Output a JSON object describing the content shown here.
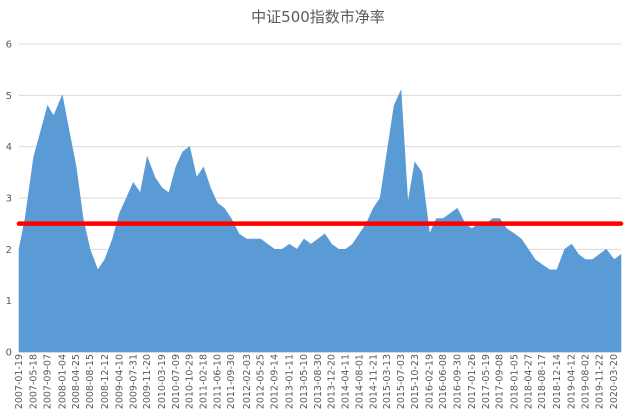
{
  "chart_data": {
    "type": "area",
    "title": "中证500指数市净率",
    "xlabel": "",
    "ylabel": "",
    "ylim": [
      0,
      6
    ],
    "yticks": [
      "0",
      "1",
      "2",
      "3",
      "4",
      "5",
      "6"
    ],
    "grid": true,
    "legend": "none",
    "colors": {
      "area": "#5b9bd5",
      "reference_line": "#ff0000",
      "gridline": "#d9d9d9",
      "text": "#595959"
    },
    "x_tick_labels": [
      "2007-01-19",
      "2007-05-18",
      "2007-09-07",
      "2008-01-04",
      "2008-04-25",
      "2008-08-15",
      "2008-12-12",
      "2009-04-10",
      "2009-07-31",
      "2009-11-20",
      "2010-03-19",
      "2010-07-09",
      "2010-10-29",
      "2011-02-18",
      "2011-06-10",
      "2011-09-30",
      "2012-02-03",
      "2012-05-25",
      "2012-09-14",
      "2013-01-11",
      "2013-05-10",
      "2013-08-30",
      "2013-12-20",
      "2014-04-11",
      "2014-08-01",
      "2014-11-21",
      "2015-03-13",
      "2015-07-03",
      "2015-10-23",
      "2016-02-19",
      "2016-06-08",
      "2016-09-30",
      "2017-01-26",
      "2017-05-19",
      "2017-09-08",
      "2018-01-05",
      "2018-04-27",
      "2018-08-17",
      "2018-12-14",
      "2019-04-12",
      "2019-08-02",
      "2019-11-22",
      "2020-03-20"
    ],
    "series": [
      {
        "type": "area",
        "x": [
          "2007-01-19",
          "2007-03-09",
          "2007-05-18",
          "2007-07-13",
          "2007-09-07",
          "2007-10-26",
          "2008-01-04",
          "2008-02-29",
          "2008-04-25",
          "2008-06-20",
          "2008-08-15",
          "2008-10-17",
          "2008-12-12",
          "2009-02-13",
          "2009-04-10",
          "2009-06-05",
          "2009-07-31",
          "2009-09-25",
          "2009-11-20",
          "2010-01-22",
          "2010-03-19",
          "2010-05-14",
          "2010-07-09",
          "2010-09-03",
          "2010-10-29",
          "2010-12-24",
          "2011-02-18",
          "2011-04-15",
          "2011-06-10",
          "2011-08-05",
          "2011-09-30",
          "2011-12-02",
          "2012-02-03",
          "2012-03-30",
          "2012-05-25",
          "2012-07-20",
          "2012-09-14",
          "2012-11-16",
          "2013-01-11",
          "2013-03-15",
          "2013-05-10",
          "2013-07-05",
          "2013-08-30",
          "2013-10-25",
          "2013-12-20",
          "2014-02-14",
          "2014-04-11",
          "2014-06-06",
          "2014-08-01",
          "2014-09-26",
          "2014-11-21",
          "2015-01-16",
          "2015-03-13",
          "2015-05-08",
          "2015-07-03",
          "2015-08-28",
          "2015-10-23",
          "2015-12-18",
          "2016-02-19",
          "2016-04-15",
          "2016-06-08",
          "2016-08-05",
          "2016-09-30",
          "2016-12-02",
          "2017-01-26",
          "2017-03-24",
          "2017-05-19",
          "2017-07-14",
          "2017-09-08",
          "2017-11-03",
          "2018-01-05",
          "2018-03-02",
          "2018-04-27",
          "2018-06-22",
          "2018-08-17",
          "2018-10-19",
          "2018-12-14",
          "2019-02-15",
          "2019-04-12",
          "2019-06-07",
          "2019-08-02",
          "2019-09-27",
          "2019-11-22",
          "2020-01-17",
          "2020-03-20",
          "2020-05-15"
        ],
        "values": [
          2.0,
          2.6,
          3.8,
          4.3,
          4.8,
          4.6,
          5.0,
          4.3,
          3.6,
          2.6,
          2.0,
          1.6,
          1.8,
          2.2,
          2.7,
          3.0,
          3.3,
          3.1,
          3.8,
          3.4,
          3.2,
          3.1,
          3.6,
          3.9,
          4.0,
          3.4,
          3.6,
          3.2,
          2.9,
          2.8,
          2.6,
          2.3,
          2.2,
          2.2,
          2.2,
          2.1,
          2.0,
          2.0,
          2.1,
          2.0,
          2.2,
          2.1,
          2.2,
          2.3,
          2.1,
          2.0,
          2.0,
          2.1,
          2.3,
          2.5,
          2.8,
          3.0,
          3.9,
          4.8,
          5.1,
          2.9,
          3.7,
          3.5,
          2.3,
          2.6,
          2.6,
          2.7,
          2.8,
          2.5,
          2.4,
          2.5,
          2.5,
          2.6,
          2.6,
          2.4,
          2.3,
          2.2,
          2.0,
          1.8,
          1.7,
          1.6,
          1.6,
          2.0,
          2.1,
          1.9,
          1.8,
          1.8,
          1.9,
          2.0,
          1.8,
          1.9
        ]
      },
      {
        "type": "line",
        "y": 2.5,
        "x_range": [
          "2007-01-19",
          "2020-05-15"
        ]
      }
    ]
  }
}
